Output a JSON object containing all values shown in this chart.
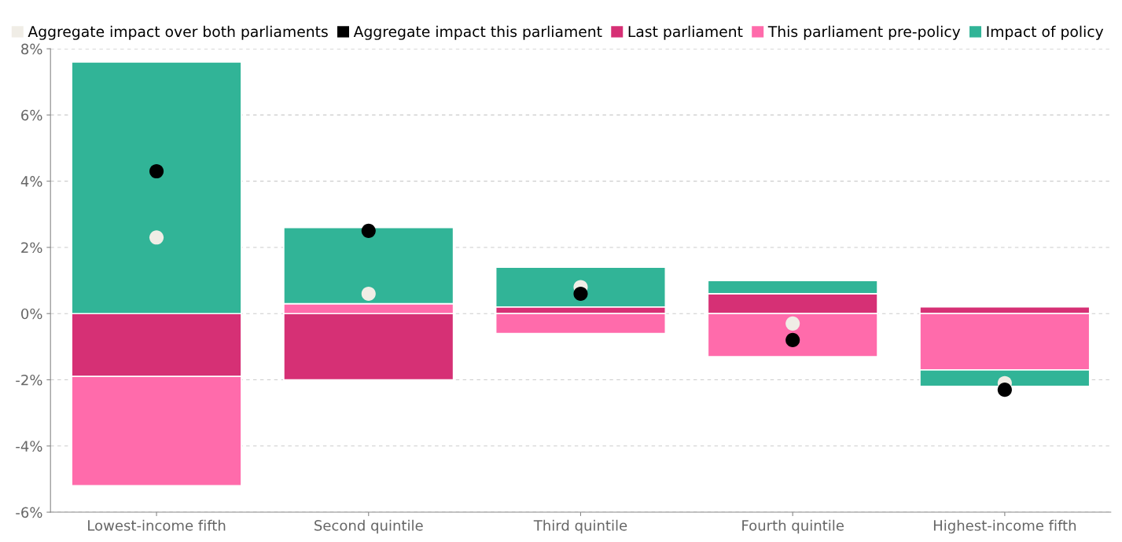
{
  "chart_data": {
    "type": "bar",
    "stacked": true,
    "categories": [
      "Lowest-income fifth",
      "Second quintile",
      "Third quintile",
      "Fourth quintile",
      "Highest-income fifth"
    ],
    "series": [
      {
        "name": "Aggregate impact over both parliaments",
        "type": "scatter",
        "color": "#f0ede6",
        "x": [
          "Lowest-income fifth",
          "Second quintile",
          "Third quintile",
          "Fourth quintile",
          "Highest-income fifth"
        ],
        "values": [
          2.3,
          0.6,
          0.8,
          -0.3,
          -2.1
        ]
      },
      {
        "name": "Aggregate impact this parliament",
        "type": "scatter",
        "color": "#000000",
        "x": [
          "Lowest-income fifth",
          "Second quintile",
          "Third quintile",
          "Fourth quintile",
          "Highest-income fifth"
        ],
        "values": [
          4.3,
          2.5,
          0.6,
          -0.8,
          -2.3
        ]
      },
      {
        "name": "Last parliament",
        "color": "#d63075",
        "values": [
          -1.9,
          -2.0,
          0.2,
          0.6,
          0.2
        ]
      },
      {
        "name": "This parliament pre-policy",
        "color": "#ff6bab",
        "values": [
          -3.3,
          0.3,
          -0.6,
          -1.3,
          -1.7
        ]
      },
      {
        "name": "Impact of policy",
        "color": "#31b497",
        "values": [
          7.6,
          2.3,
          1.2,
          0.4,
          -0.5
        ]
      }
    ],
    "ylim": [
      -6,
      8
    ],
    "yticks": [
      {
        "value": -6,
        "label": "-6%"
      },
      {
        "value": -4,
        "label": "-4%"
      },
      {
        "value": -2,
        "label": "-2%"
      },
      {
        "value": 0,
        "label": "0%"
      },
      {
        "value": 2,
        "label": "2%"
      },
      {
        "value": 4,
        "label": "4%"
      },
      {
        "value": 6,
        "label": "6%"
      },
      {
        "value": 8,
        "label": "8%"
      }
    ],
    "grid": "y",
    "legend": "top",
    "marker": "circle"
  }
}
